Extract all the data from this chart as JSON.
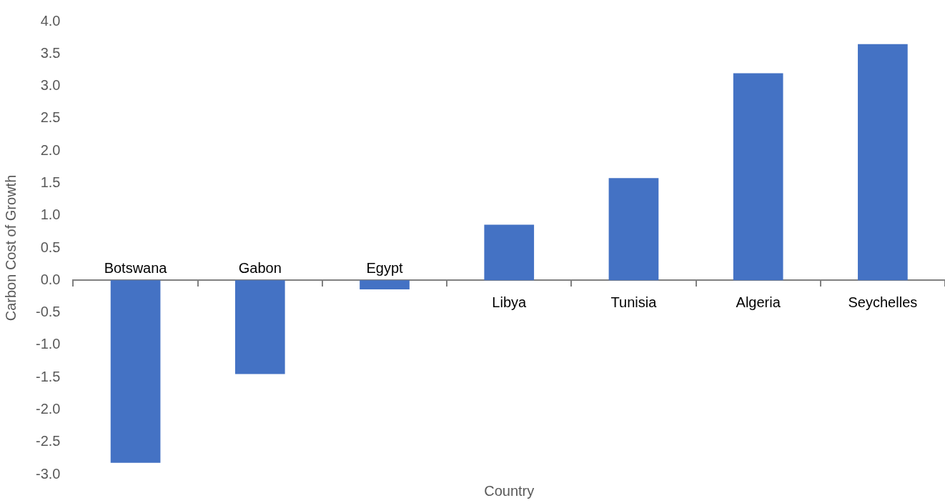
{
  "chart_data": {
    "type": "bar",
    "xlabel": "Country",
    "ylabel": "Carbon Cost of Growth",
    "categories": [
      "Botswana",
      "Gabon",
      "Egypt",
      "Libya",
      "Tunisia",
      "Algeria",
      "Seychelles"
    ],
    "values": [
      -2.82,
      -1.45,
      -0.14,
      0.86,
      1.58,
      3.2,
      3.65
    ],
    "color": "#4472c4",
    "ylim": [
      -3,
      4
    ],
    "yticks": [
      {
        "value": -3,
        "label": "-3.0"
      },
      {
        "value": -2.5,
        "label": "-2.5"
      },
      {
        "value": -2,
        "label": "-2.0"
      },
      {
        "value": -1.5,
        "label": "-1.5"
      },
      {
        "value": -1,
        "label": "-1.0"
      },
      {
        "value": -0.5,
        "label": "-0.5"
      },
      {
        "value": 0,
        "label": "0.0"
      },
      {
        "value": 0.5,
        "label": "0.5"
      },
      {
        "value": 1,
        "label": "1.0"
      },
      {
        "value": 1.5,
        "label": "1.5"
      },
      {
        "value": 2,
        "label": "2.0"
      },
      {
        "value": 2.5,
        "label": "2.5"
      },
      {
        "value": 3,
        "label": "3.0"
      },
      {
        "value": 3.5,
        "label": "3.5"
      },
      {
        "value": 4,
        "label": "4.0"
      }
    ],
    "grid": false,
    "legend": false
  }
}
